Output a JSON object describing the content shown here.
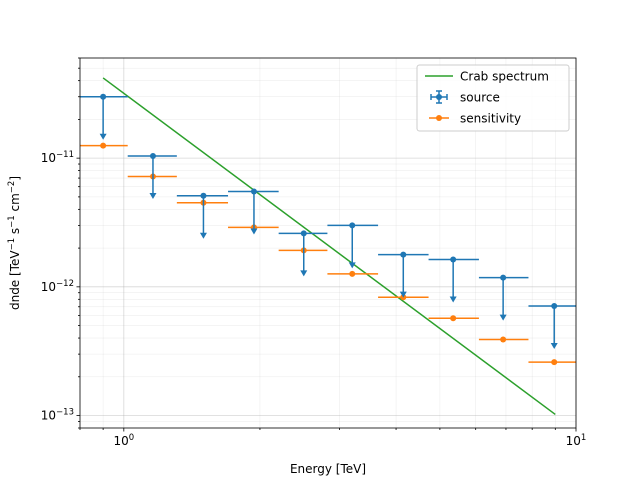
{
  "chart_data": {
    "type": "scatter",
    "title": "",
    "xlabel": "Energy [TeV]",
    "ylabel_parts": {
      "base": "dnde [TeV",
      "exp1": "−1",
      "mid": " s",
      "exp2": "−1",
      "mid2": " cm",
      "exp3": "−2",
      "end": "]"
    },
    "xscale": "log",
    "yscale": "log",
    "xlim": [
      0.8,
      10
    ],
    "ylim": [
      8e-14,
      6e-11
    ],
    "grid": true,
    "legend_position": "top-right",
    "x_ticks": [
      {
        "value": 1,
        "base": "10",
        "exp": "0"
      },
      {
        "value": 10,
        "base": "10",
        "exp": "1"
      }
    ],
    "y_ticks": [
      {
        "value": 1e-13,
        "base": "10",
        "exp": "−13"
      },
      {
        "value": 1e-12,
        "base": "10",
        "exp": "−12"
      },
      {
        "value": 1e-11,
        "base": "10",
        "exp": "−11"
      }
    ],
    "series": [
      {
        "name": "Crab spectrum",
        "kind": "line",
        "color": "#2ca02c",
        "x": [
          0.9,
          9.0
        ],
        "y": [
          4.2e-11,
          1.02e-13
        ]
      },
      {
        "name": "source",
        "kind": "upper-limit",
        "color": "#1f77b4",
        "x": [
          0.9,
          1.16,
          1.5,
          1.94,
          2.5,
          3.2,
          4.15,
          5.35,
          6.9,
          8.95
        ],
        "x_lo": [
          0.8,
          1.02,
          1.31,
          1.7,
          2.2,
          2.82,
          3.65,
          4.72,
          6.1,
          7.85
        ],
        "x_hi": [
          1.02,
          1.31,
          1.7,
          2.2,
          2.82,
          3.65,
          4.72,
          6.1,
          7.85,
          10.0
        ],
        "y": [
          3e-11,
          1.04e-11,
          5.1e-12,
          5.5e-12,
          2.6e-12,
          3e-12,
          1.78e-12,
          1.63e-12,
          1.18e-12,
          7.1e-13
        ]
      },
      {
        "name": "sensitivity",
        "kind": "points",
        "color": "#ff7f0e",
        "x": [
          0.9,
          1.16,
          1.5,
          1.94,
          2.5,
          3.2,
          4.15,
          5.35,
          6.9,
          8.95
        ],
        "x_lo": [
          0.8,
          1.02,
          1.31,
          1.7,
          2.2,
          2.82,
          3.65,
          4.72,
          6.1,
          7.85
        ],
        "x_hi": [
          1.02,
          1.31,
          1.7,
          2.2,
          2.82,
          3.65,
          4.72,
          6.1,
          7.85,
          10.0
        ],
        "y": [
          1.25e-11,
          7.2e-12,
          4.5e-12,
          2.9e-12,
          1.92e-12,
          1.26e-12,
          8.3e-13,
          5.7e-13,
          3.9e-13,
          2.6e-13
        ]
      }
    ]
  }
}
